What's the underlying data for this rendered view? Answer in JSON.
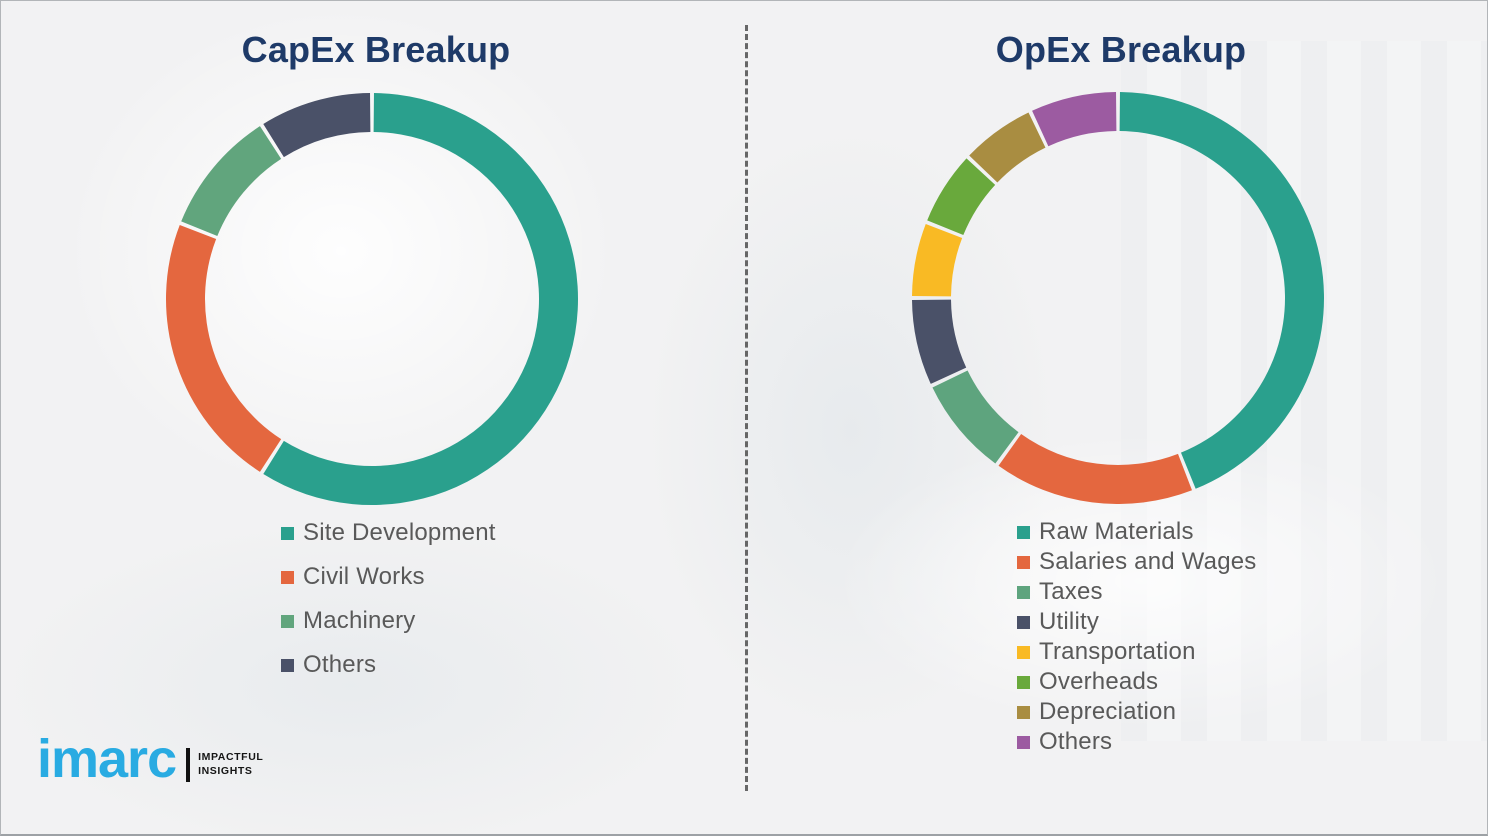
{
  "chart_data": [
    {
      "type": "pie",
      "variant": "donut",
      "title": "CapEx Breakup",
      "legend_position": "below-left",
      "categories": [
        "Site Development",
        "Civil Works",
        "Machinery",
        "Others"
      ],
      "values": [
        59,
        22,
        10,
        9
      ],
      "unit": "percent (estimated from arc angles; no data labels shown)",
      "colors": [
        "#2aa08d",
        "#e4673f",
        "#61a57d",
        "#4a5168"
      ],
      "start_angle_deg": 0,
      "direction": "clockwise"
    },
    {
      "type": "pie",
      "variant": "donut",
      "title": "OpEx Breakup",
      "legend_position": "below-left",
      "categories": [
        "Raw Materials",
        "Salaries and Wages",
        "Taxes",
        "Utility",
        "Transportation",
        "Overheads",
        "Depreciation",
        "Others"
      ],
      "values": [
        44,
        16,
        8,
        7,
        6,
        6,
        6,
        7
      ],
      "unit": "percent (estimated from arc angles; no data labels shown)",
      "colors": [
        "#2aa08d",
        "#e4673f",
        "#5ea47e",
        "#4a5168",
        "#f9ba24",
        "#69a93c",
        "#a98d41",
        "#9c5ba1"
      ],
      "start_angle_deg": 0,
      "direction": "clockwise"
    }
  ],
  "logo": {
    "brand": "imarc",
    "tagline_line1": "IMPACTFUL",
    "tagline_line2": "INSIGHTS",
    "brand_color": "#29abe2"
  },
  "theme": {
    "title_color": "#1e3a68",
    "legend_text_color": "#595959",
    "background": "#f2f2f3",
    "divider_color": "#4f4f4f",
    "segment_gap_color": "#ffffff"
  }
}
